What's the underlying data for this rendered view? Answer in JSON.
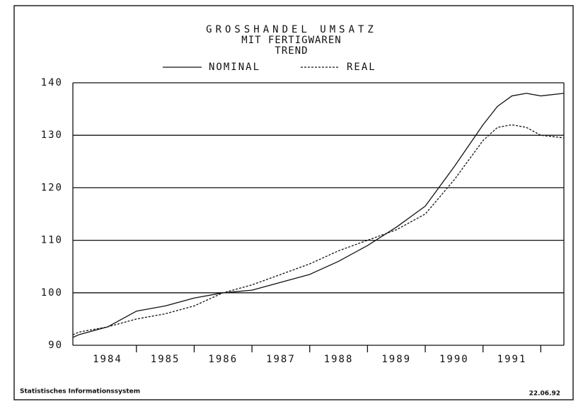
{
  "chart_data": {
    "type": "line",
    "title": "GROSSHANDEL UMSATZ",
    "subtitle": [
      "MIT FERTIGWAREN",
      "TREND"
    ],
    "x": [
      1983.9,
      1984,
      1984.5,
      1985,
      1985.5,
      1986,
      1986.5,
      1987,
      1987.5,
      1988,
      1988.5,
      1989,
      1989.5,
      1990,
      1990.5,
      1991,
      1991.25,
      1991.5,
      1991.75,
      1992,
      1992.4
    ],
    "series": [
      {
        "name": "NOMINAL",
        "color": "#111111",
        "dash": "none",
        "values": [
          91.5,
          92,
          93.5,
          96.5,
          97.5,
          99,
          100,
          100.5,
          102,
          103.5,
          106,
          109,
          112.5,
          116.5,
          124,
          132,
          135.5,
          137.5,
          138,
          137.5,
          138
        ]
      },
      {
        "name": "REAL",
        "color": "#111111",
        "dash": "3,2",
        "values": [
          92,
          92.5,
          93.5,
          95,
          96,
          97.5,
          100,
          101.5,
          103.5,
          105.5,
          108,
          110,
          112,
          115,
          121.5,
          129,
          131.5,
          132,
          131.5,
          130,
          129.5
        ]
      }
    ],
    "xlim": [
      1983.9,
      1992.4
    ],
    "xticks": [
      1985,
      1986,
      1987,
      1988,
      1989,
      1990,
      1991,
      1992
    ],
    "year_labels": [
      "1984",
      "1985",
      "1986",
      "1987",
      "1988",
      "1989",
      "1990",
      "1991"
    ],
    "ylim": [
      90,
      140
    ],
    "yticks": [
      90,
      100,
      110,
      120,
      130,
      140
    ],
    "grid": true,
    "footer_left": "Statistisches Informationssystem",
    "footer_right": "22.06.92"
  }
}
